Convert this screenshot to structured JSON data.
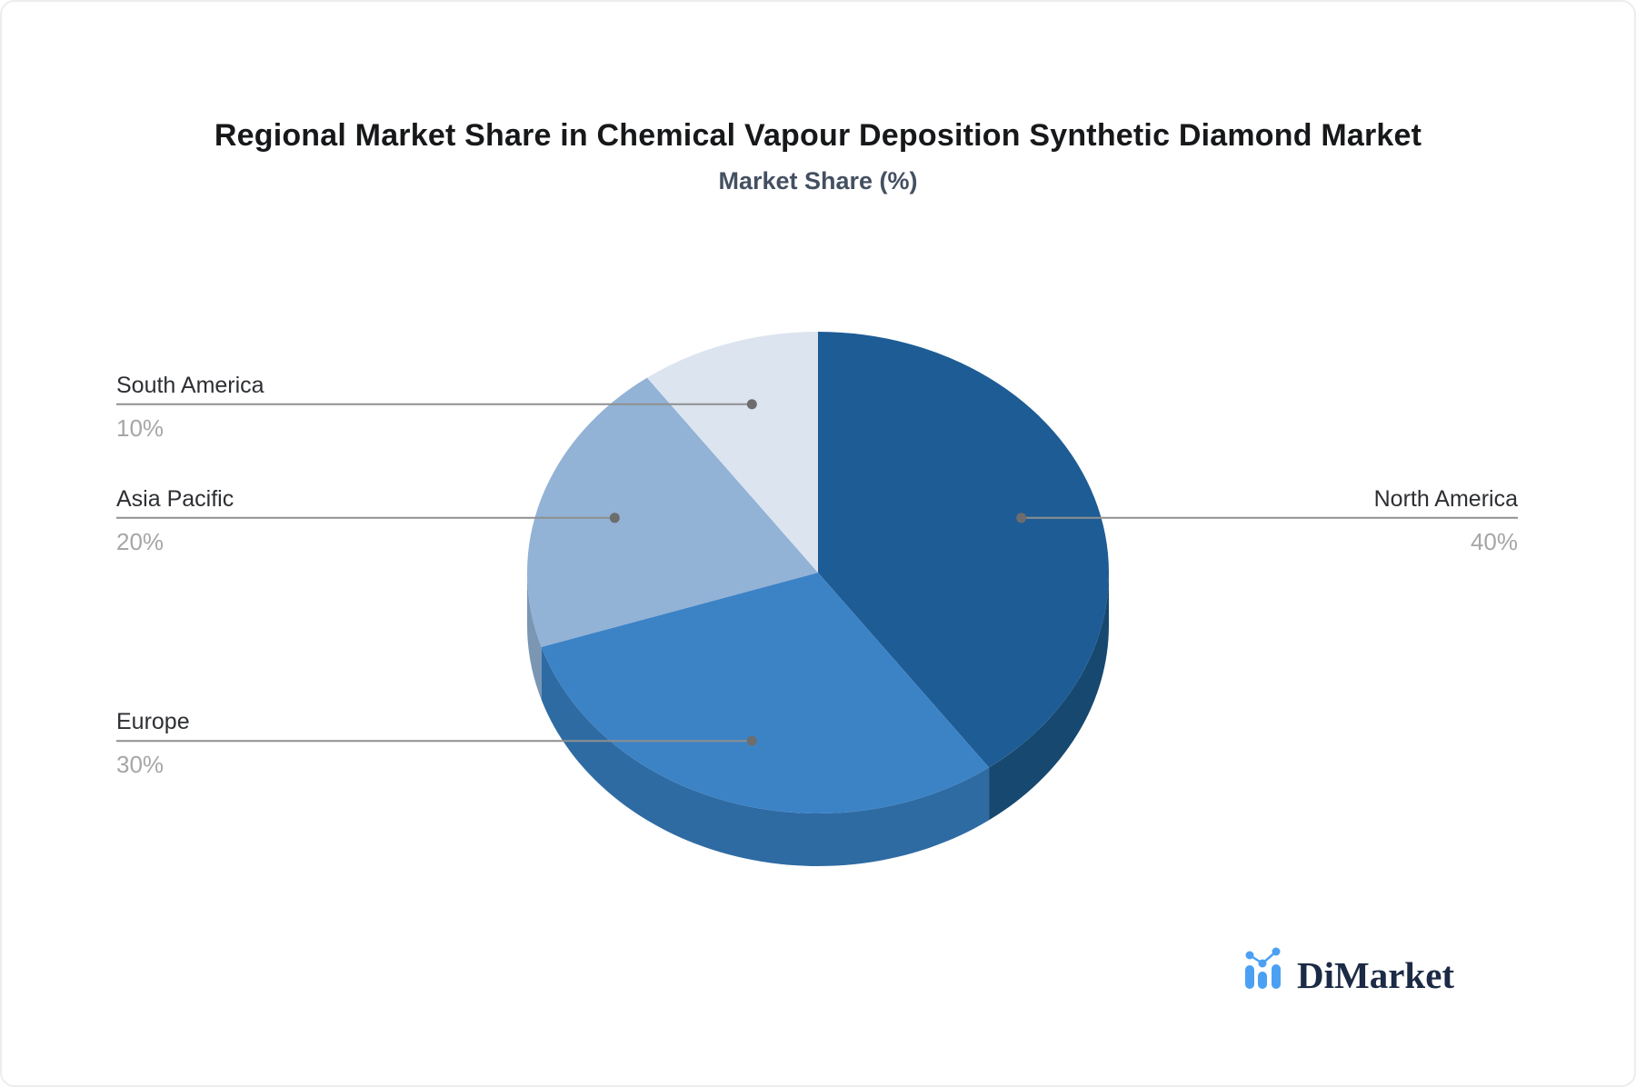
{
  "chart_data": {
    "type": "pie",
    "style": "3d-pie",
    "title": "Regional Market Share in Chemical Vapour Deposition Synthetic Diamond Market",
    "subtitle": "Market Share (%)",
    "unit": "%",
    "direction": "clockwise",
    "start_angle": "12-o-clock",
    "legend_position": "callout-labels",
    "slices": [
      {
        "label": "North America",
        "value": 40,
        "display": "40%",
        "color": "#1E5C95",
        "side_color": "#17486F",
        "label_side": "right"
      },
      {
        "label": "Europe",
        "value": 30,
        "display": "30%",
        "color": "#3C83C6",
        "side_color": "#2F6BA3",
        "label_side": "left"
      },
      {
        "label": "Asia Pacific",
        "value": 20,
        "display": "20%",
        "color": "#92B2D6",
        "side_color": "#7A96B3",
        "label_side": "left"
      },
      {
        "label": "South America",
        "value": 10,
        "display": "10%",
        "color": "#DCE4EF",
        "side_color": "#B9C5D6",
        "label_side": "left"
      }
    ]
  },
  "callout_style": {
    "line_color": "#8F8F8F",
    "dot_color": "#6D6D6D",
    "label_color": "#2D2F33",
    "value_color": "#A6A6A6"
  },
  "logo": {
    "text": "DiMarket",
    "icon": "bar-chart-sparkline-icon",
    "icon_color": "#4BA0F3",
    "text_color": "#1B2A45"
  }
}
